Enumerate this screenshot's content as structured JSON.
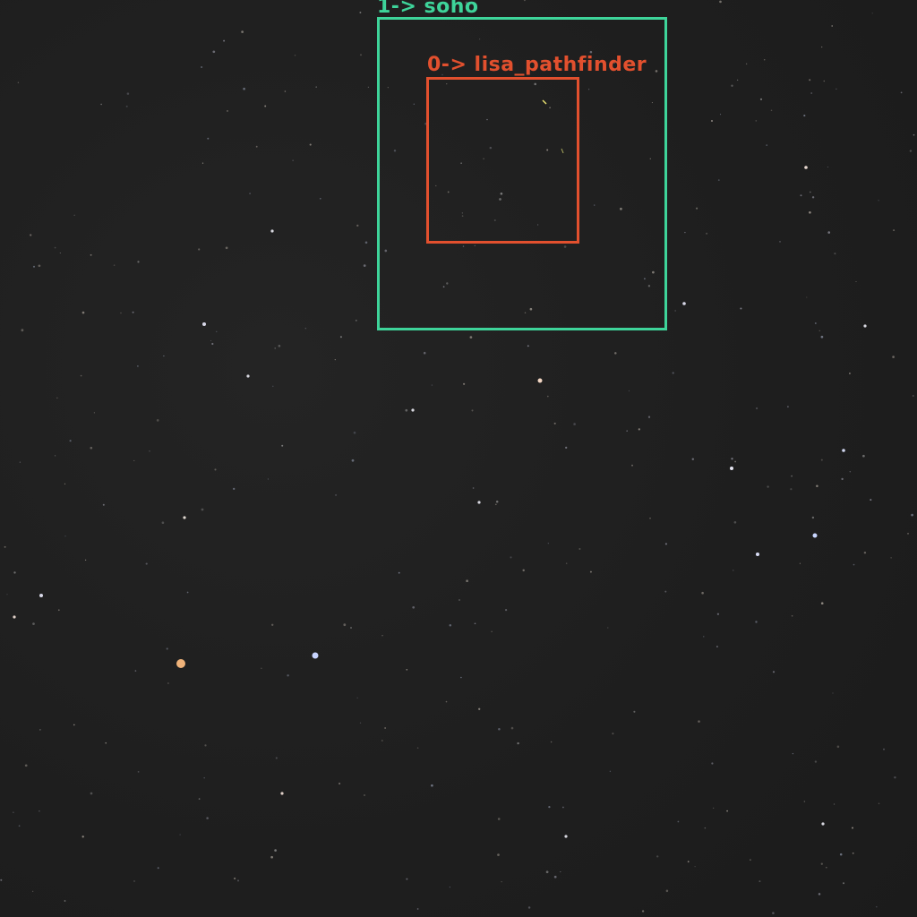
{
  "image": {
    "description_kind": "night sky star field with object detection overlays",
    "background_color": "#1f1f1f"
  },
  "detections": [
    {
      "id": "soho",
      "label": "1-> soho",
      "color": "#3ed49a"
    },
    {
      "id": "lisa_pathfinder",
      "label": "0-> lisa_pathfinder",
      "color": "#e2502e"
    }
  ]
}
